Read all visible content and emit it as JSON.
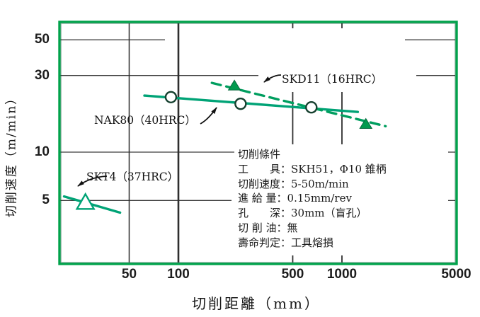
{
  "figure": {
    "background": "#ffffff",
    "frame_color": "#00a24b",
    "grid_color": "#3c3c3c",
    "text_color": "#1a1a1a"
  },
  "chart_data": {
    "type": "line",
    "title": "",
    "xlabel": "切削距離（mm）",
    "ylabel": "切削速度（m/min）",
    "x_scale": "log",
    "y_scale": "log",
    "xlim": [
      18,
      5000
    ],
    "ylim": [
      2,
      65
    ],
    "x_ticks": [
      "50",
      "100",
      "500",
      "1000",
      "5000"
    ],
    "y_ticks": [
      "50",
      "30",
      "10",
      "5"
    ],
    "grid": "partial segments (scanned figure)",
    "legend_position": "inline annotations with arrows",
    "series": [
      {
        "name": "NAK80（40HRC）",
        "style": "solid",
        "marker": "open-circle",
        "color": "#00a376",
        "line": [
          [
            62,
            22.5
          ],
          [
            1250,
            17.8
          ]
        ],
        "points": [
          [
            90,
            22
          ],
          [
            240,
            20
          ],
          [
            650,
            19
          ]
        ]
      },
      {
        "name": "SKD11（16HRC）",
        "style": "dashed",
        "marker": "filled-triangle",
        "color": "#009e5f",
        "line": [
          [
            160,
            27
          ],
          [
            1850,
            14.5
          ]
        ],
        "points": [
          [
            220,
            26
          ],
          [
            1400,
            15
          ]
        ]
      },
      {
        "name": "SKT4（37HRC）",
        "style": "solid",
        "marker": "open-triangle",
        "color": "#00a376",
        "line": [
          [
            20,
            5.3
          ],
          [
            44,
            4.2
          ]
        ],
        "points": [
          [
            27,
            4.9
          ]
        ]
      }
    ],
    "conditions": {
      "title": "切削條件",
      "lines": [
        "工　　具：SKH51，Φ10 錐柄",
        "切削速度：5-50m/min",
        "進 給 量：0.15mm/rev",
        "孔　　深：30mm（盲孔）",
        "切 削 油：無",
        "壽命判定：工具熔損"
      ]
    }
  }
}
